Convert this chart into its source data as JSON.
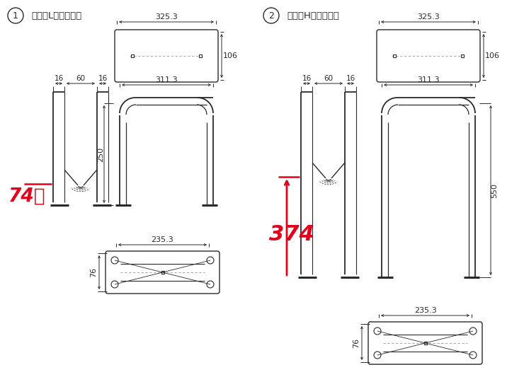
{
  "title1_circle": "1",
  "title1_text": "ラックL本体（低）",
  "title2_circle": "2",
  "title2_text": "ラックH本体（高）",
  "bg_color": "#ffffff",
  "lc": "#2a2a2a",
  "rc": "#e0001e",
  "dim1_top_w": "325.3",
  "dim1_top_h": "106",
  "dim1_side_w": "311.3",
  "dim1_side_h": "250",
  "dim1_bot_w": "235.3",
  "dim1_bot_h": "76",
  "dim1_16a": "16",
  "dim1_60": "60",
  "dim1_16b": "16",
  "dim1_red": "74下",
  "dim2_top_w": "325.3",
  "dim2_top_h": "106",
  "dim2_side_w": "311.3",
  "dim2_side_h": "550",
  "dim2_bot_w": "235.3",
  "dim2_bot_h": "76",
  "dim2_16a": "16",
  "dim2_60": "60",
  "dim2_16b": "16",
  "dim2_red": "374"
}
